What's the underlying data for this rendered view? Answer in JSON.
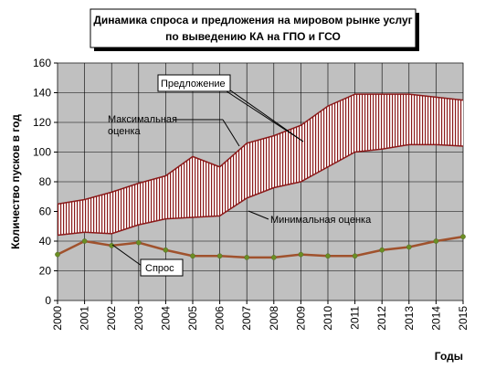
{
  "chart_data": {
    "type": "area",
    "title_lines": [
      "Динамика спроса и предложения на мировом рынке услуг",
      "по выведению КА на ГПО и ГСО"
    ],
    "xlabel": "Годы",
    "ylabel": "Количество пусков в год",
    "x": [
      "2000",
      "2001",
      "2002",
      "2003",
      "2004",
      "2005",
      "2006",
      "2007",
      "2008",
      "2009",
      "2010",
      "2011",
      "2012",
      "2013",
      "2014",
      "2015"
    ],
    "ylim": [
      0,
      160
    ],
    "yticks": [
      0,
      20,
      40,
      60,
      80,
      100,
      120,
      140,
      160
    ],
    "grid": true,
    "legend": "none",
    "series": [
      {
        "name": "Максимальная оценка",
        "values": [
          65,
          68,
          73,
          79,
          84,
          97,
          90,
          106,
          111,
          118,
          131,
          139,
          139,
          139,
          137,
          135
        ]
      },
      {
        "name": "Минимальная оценка",
        "values": [
          44,
          46,
          45,
          51,
          55,
          56,
          57,
          69,
          76,
          80,
          90,
          100,
          102,
          105,
          105,
          104
        ]
      },
      {
        "name": "Спрос",
        "values": [
          31,
          40,
          37,
          39,
          34,
          30,
          30,
          29,
          29,
          31,
          30,
          30,
          34,
          36,
          40,
          43
        ]
      }
    ],
    "annotations": {
      "supply": "Предложение",
      "max_line1": "Максимальная",
      "max_line2": "оценка",
      "min": "Минимальная оценка",
      "demand": "Спрос"
    },
    "colors": {
      "plot_bg": "#c0c0c0",
      "band_fill": "#ffffff",
      "band_hatch": "#8b1a1a",
      "bound_line": "#8b1a1a",
      "demand_line": "#a0522d",
      "demand_marker": "#6b8e23"
    }
  }
}
